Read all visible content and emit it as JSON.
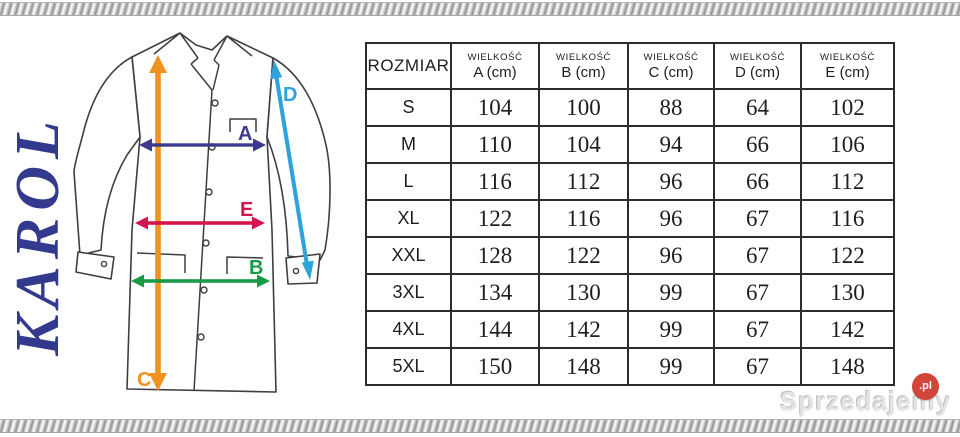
{
  "brand": {
    "text": "KAROL",
    "color": "#333A8E"
  },
  "diagram": {
    "labels": {
      "A": "A",
      "B": "B",
      "C": "C",
      "D": "D",
      "E": "E"
    },
    "colors": {
      "arrow_a": "#3B3A8C",
      "arrow_b": "#189A47",
      "arrow_c": "#F0921F",
      "arrow_d": "#2EA2DB",
      "arrow_e": "#D5164E",
      "coat_outline": "#3f3f3f"
    }
  },
  "table": {
    "size_header": "ROZMIAR",
    "columns": [
      {
        "top": "WIELKOŚĆ",
        "label": "A (cm)"
      },
      {
        "top": "WIELKOŚĆ",
        "label": "B (cm)"
      },
      {
        "top": "WIELKOŚĆ",
        "label": "C (cm)"
      },
      {
        "top": "WIELKOŚĆ",
        "label": "D (cm)"
      },
      {
        "top": "WIELKOŚĆ",
        "label": "E (cm)"
      }
    ],
    "rows": [
      {
        "size": "S",
        "values": [
          104,
          100,
          88,
          64,
          102
        ]
      },
      {
        "size": "M",
        "values": [
          110,
          104,
          94,
          66,
          106
        ]
      },
      {
        "size": "L",
        "values": [
          116,
          112,
          96,
          66,
          112
        ]
      },
      {
        "size": "XL",
        "values": [
          122,
          116,
          96,
          67,
          116
        ]
      },
      {
        "size": "XXL",
        "values": [
          128,
          122,
          96,
          67,
          122
        ]
      },
      {
        "size": "3XL",
        "values": [
          134,
          130,
          99,
          67,
          130
        ]
      },
      {
        "size": "4XL",
        "values": [
          144,
          142,
          99,
          67,
          142
        ]
      },
      {
        "size": "5XL",
        "values": [
          150,
          148,
          99,
          67,
          148
        ]
      }
    ]
  },
  "watermark": {
    "text": "Sprzedajemy",
    "suffix": ".pl",
    "badge_color": "#d2453b"
  }
}
